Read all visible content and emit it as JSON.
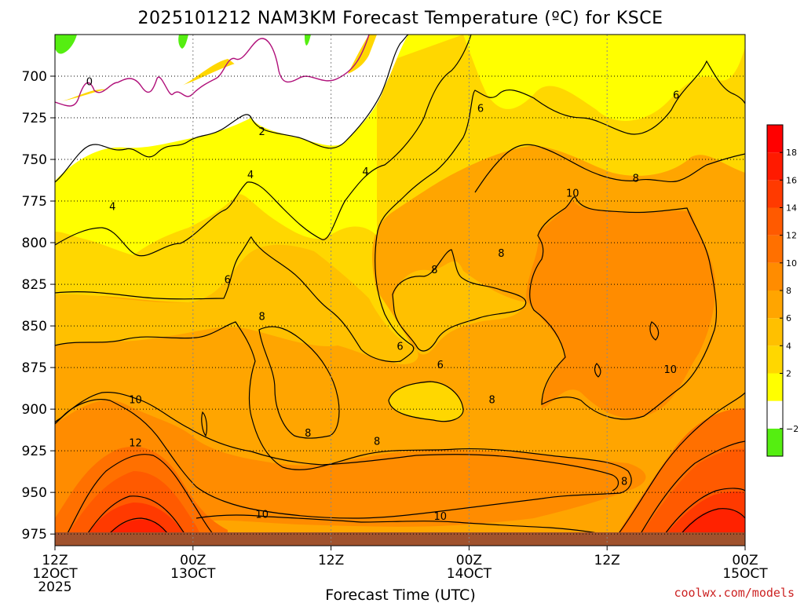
{
  "chart_data": {
    "type": "heatmap",
    "title": "2025101212 NAM3KM Forecast Temperature (ºC) for KSCE",
    "xlabel": "Forecast Time (UTC)",
    "credit": "coolwx.com/models",
    "y_axis": {
      "ticks": [
        "700",
        "725",
        "750",
        "775",
        "800",
        "825",
        "850",
        "875",
        "900",
        "925",
        "950",
        "975"
      ],
      "values": [
        700,
        725,
        750,
        775,
        800,
        825,
        850,
        875,
        900,
        925,
        950,
        975
      ],
      "range": [
        675,
        982
      ],
      "direction": "pressure increasing downward"
    },
    "x_axis": {
      "range_hours": [
        0,
        60
      ],
      "ticks": [
        {
          "hour": 0,
          "lines": [
            "12Z",
            "12OCT",
            "2025"
          ]
        },
        {
          "hour": 12,
          "lines": [
            "00Z",
            "13OCT"
          ]
        },
        {
          "hour": 24,
          "lines": [
            "12Z"
          ]
        },
        {
          "hour": 36,
          "lines": [
            "00Z",
            "14OCT"
          ]
        },
        {
          "hour": 48,
          "lines": [
            "12Z"
          ]
        },
        {
          "hour": 60,
          "lines": [
            "00Z",
            "15OCT"
          ]
        }
      ]
    },
    "colorbar": {
      "levels": [
        -4,
        -2,
        0,
        2,
        4,
        6,
        8,
        10,
        12,
        14,
        16,
        18,
        20
      ],
      "tick_labels": [
        "−2",
        "2",
        "4",
        "6",
        "8",
        "10",
        "12",
        "14",
        "16",
        "18"
      ],
      "tick_values": [
        -2,
        2,
        4,
        6,
        8,
        10,
        12,
        14,
        16,
        18
      ],
      "colors": [
        "#55ee11",
        "#ffffff",
        "#ffff00",
        "#ffd700",
        "#ffc000",
        "#ffa500",
        "#ff8c00",
        "#ff7000",
        "#ff5a00",
        "#ff3a00",
        "#ff1a00",
        "#ff0000"
      ]
    },
    "contour_labels": [
      {
        "value": "0",
        "hour": 3.0,
        "p": 703
      },
      {
        "value": "2",
        "hour": 18.0,
        "p": 733
      },
      {
        "value": "4",
        "hour": 5.0,
        "p": 778
      },
      {
        "value": "4",
        "hour": 17.0,
        "p": 759
      },
      {
        "value": "4",
        "hour": 27.0,
        "p": 757
      },
      {
        "value": "6",
        "hour": 15.0,
        "p": 822
      },
      {
        "value": "6",
        "hour": 30.0,
        "p": 862
      },
      {
        "value": "6",
        "hour": 33.5,
        "p": 873
      },
      {
        "value": "6",
        "hour": 37.0,
        "p": 719
      },
      {
        "value": "6",
        "hour": 54.0,
        "p": 711
      },
      {
        "value": "8",
        "hour": 18.0,
        "p": 844
      },
      {
        "value": "8",
        "hour": 22.0,
        "p": 914
      },
      {
        "value": "8",
        "hour": 28.0,
        "p": 919
      },
      {
        "value": "8",
        "hour": 33.0,
        "p": 816
      },
      {
        "value": "8",
        "hour": 38.8,
        "p": 806
      },
      {
        "value": "8",
        "hour": 38.0,
        "p": 894
      },
      {
        "value": "8",
        "hour": 50.5,
        "p": 761
      },
      {
        "value": "8",
        "hour": 49.5,
        "p": 943
      },
      {
        "value": "10",
        "hour": 45.0,
        "p": 770
      },
      {
        "value": "10",
        "hour": 7.0,
        "p": 894
      },
      {
        "value": "10",
        "hour": 18.0,
        "p": 963
      },
      {
        "value": "10",
        "hour": 33.5,
        "p": 964
      },
      {
        "value": "10",
        "hour": 53.5,
        "p": 876
      },
      {
        "value": "12",
        "hour": 7.0,
        "p": 920
      }
    ]
  }
}
